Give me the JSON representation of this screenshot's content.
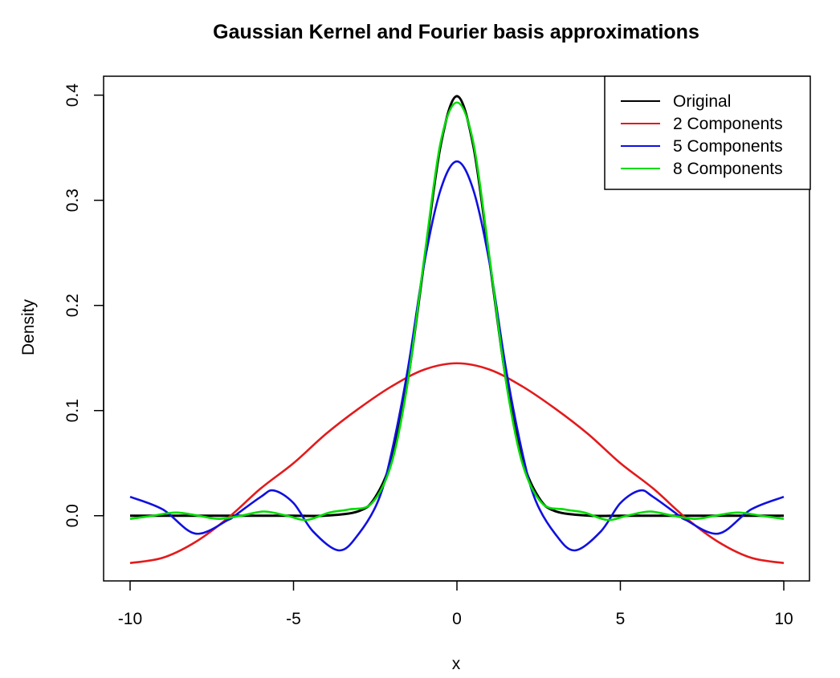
{
  "chart_data": {
    "type": "line",
    "title": "Gaussian Kernel and Fourier basis approximations",
    "xlabel": "x",
    "ylabel": "Density",
    "xlim": [
      -10,
      10
    ],
    "ylim": [
      -0.062,
      0.418
    ],
    "x_ticks": [
      -10,
      -5,
      0,
      5,
      10
    ],
    "y_ticks": [
      0.0,
      0.1,
      0.2,
      0.3,
      0.4
    ],
    "x_tick_labels": [
      "-10",
      "-5",
      "0",
      "5",
      "10"
    ],
    "y_tick_labels": [
      "0.0",
      "0.1",
      "0.2",
      "0.3",
      "0.4"
    ],
    "grid": false,
    "legend_position": "top-right",
    "series": [
      {
        "name": "Original",
        "color": "#000000",
        "x": [
          -10,
          -8,
          -6,
          -5,
          -4,
          -3,
          -2.5,
          -2,
          -1.5,
          -1,
          -0.5,
          0,
          0.5,
          1,
          1.5,
          2,
          2.5,
          3,
          4,
          5,
          6,
          8,
          10
        ],
        "y": [
          0.0,
          0.0,
          0.0,
          0.0,
          0.0001,
          0.0044,
          0.0175,
          0.054,
          0.1295,
          0.242,
          0.352,
          0.399,
          0.352,
          0.242,
          0.1295,
          0.054,
          0.0175,
          0.0044,
          0.0001,
          0.0,
          0.0,
          0.0,
          0.0
        ]
      },
      {
        "name": "2 Components",
        "color": "#e31a1c",
        "x": [
          -10,
          -9,
          -8,
          -7,
          -6,
          -5,
          -4,
          -3,
          -2,
          -1,
          0,
          1,
          2,
          3,
          4,
          5,
          6,
          7,
          8,
          9,
          10
        ],
        "y": [
          -0.045,
          -0.04,
          -0.025,
          -0.002,
          0.026,
          0.05,
          0.078,
          0.102,
          0.123,
          0.139,
          0.145,
          0.139,
          0.123,
          0.102,
          0.078,
          0.05,
          0.026,
          -0.002,
          -0.025,
          -0.04,
          -0.045
        ]
      },
      {
        "name": "5 Components",
        "color": "#1010e0",
        "x": [
          -10,
          -9,
          -8,
          -7,
          -6.8,
          -6,
          -5.6,
          -5,
          -4.4,
          -3.6,
          -3,
          -2.4,
          -2,
          -1.5,
          -1,
          -0.5,
          0,
          0.5,
          1,
          1.5,
          2,
          2.4,
          3,
          3.6,
          4.4,
          5,
          5.6,
          6,
          6.8,
          7,
          8,
          9,
          10
        ],
        "y": [
          0.018,
          0.006,
          -0.017,
          -0.004,
          0.0,
          0.018,
          0.024,
          0.012,
          -0.015,
          -0.033,
          -0.017,
          0.015,
          0.06,
          0.14,
          0.24,
          0.31,
          0.337,
          0.31,
          0.24,
          0.14,
          0.06,
          0.015,
          -0.017,
          -0.033,
          -0.015,
          0.012,
          0.024,
          0.018,
          0.0,
          -0.004,
          -0.017,
          0.006,
          0.018
        ]
      },
      {
        "name": "8 Components",
        "color": "#00dd00",
        "x": [
          -10,
          -9.3,
          -8.6,
          -7.9,
          -7.3,
          -6.6,
          -5.9,
          -5.2,
          -4.6,
          -3.9,
          -3.3,
          -2.6,
          -2,
          -1.5,
          -1,
          -0.5,
          0,
          0.5,
          1,
          1.5,
          2,
          2.6,
          3.3,
          3.9,
          4.6,
          5.2,
          5.9,
          6.6,
          7.3,
          7.9,
          8.6,
          9.3,
          10
        ],
        "y": [
          -0.003,
          0.0,
          0.003,
          0.0,
          -0.003,
          0.0,
          0.004,
          0.0,
          -0.004,
          0.003,
          0.006,
          0.012,
          0.05,
          0.128,
          0.245,
          0.355,
          0.393,
          0.355,
          0.245,
          0.128,
          0.05,
          0.012,
          0.006,
          0.003,
          -0.004,
          0.0,
          0.004,
          0.0,
          -0.003,
          0.0,
          0.003,
          0.0,
          -0.003
        ]
      }
    ]
  }
}
